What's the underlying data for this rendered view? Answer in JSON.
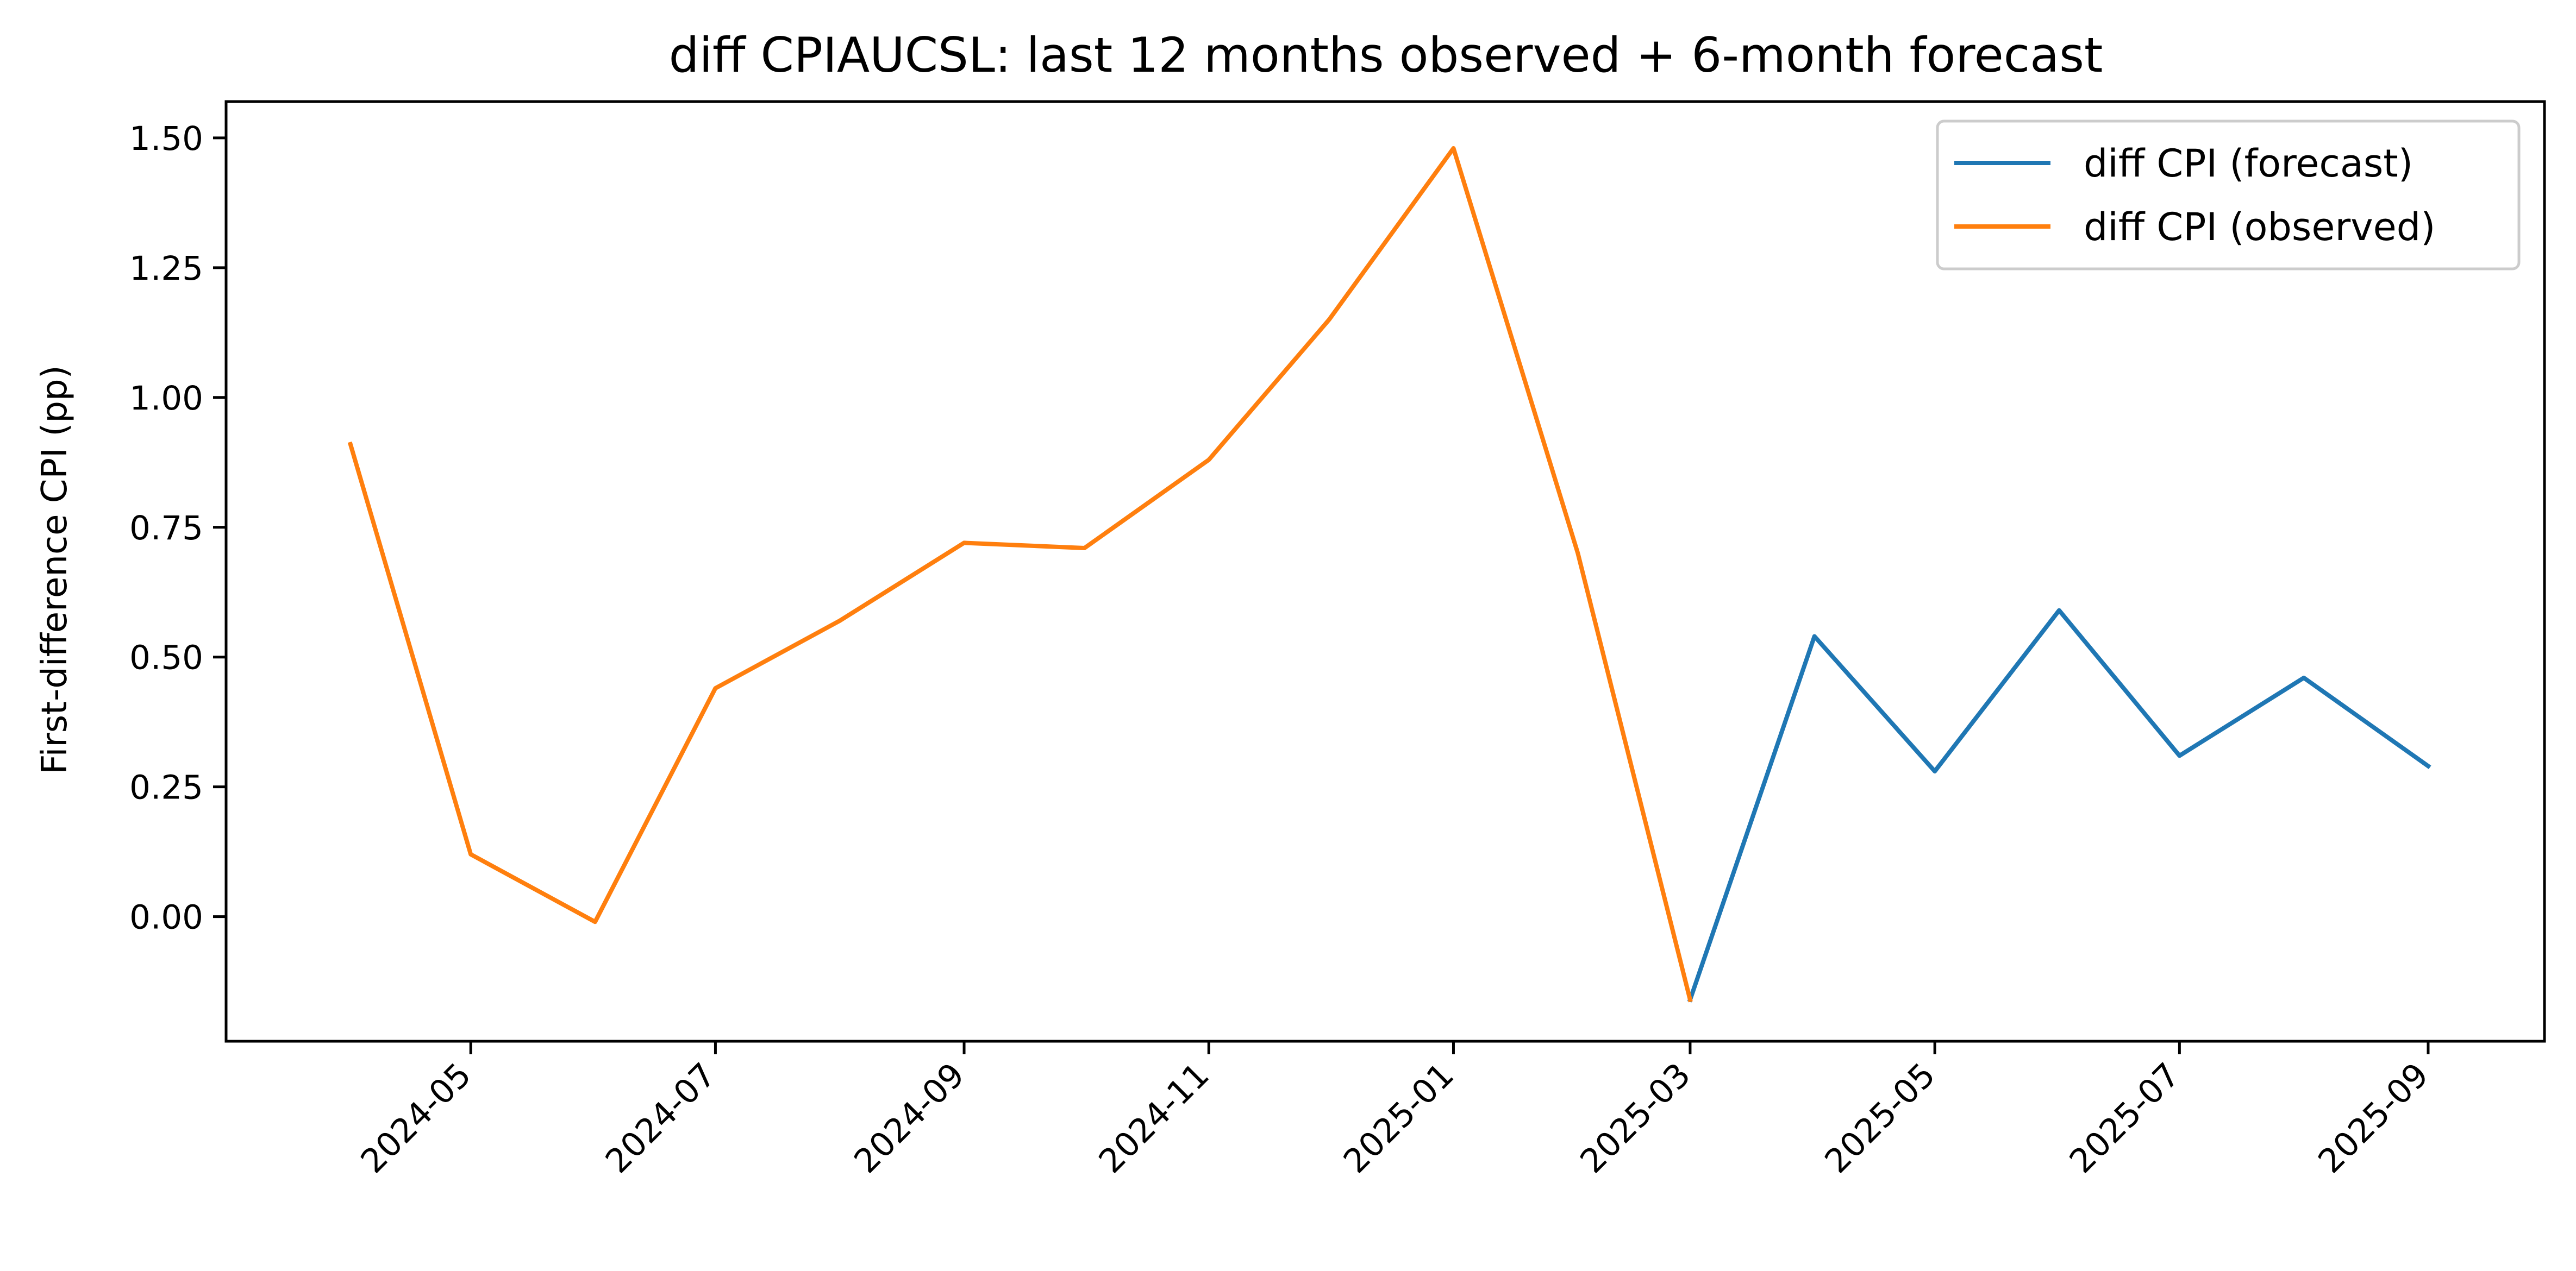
{
  "chart_data": {
    "type": "line",
    "title": "diff CPIAUCSL: last 12 months observed + 6-month forecast",
    "xlabel": "",
    "ylabel": "First-difference CPI (pp)",
    "x_range": [
      "2024-03-01",
      "2025-09-30"
    ],
    "ylim": [
      -0.24,
      1.57
    ],
    "y_ticks": [
      0.0,
      0.25,
      0.5,
      0.75,
      1.0,
      1.25,
      1.5
    ],
    "y_tick_labels": [
      "0.00",
      "0.25",
      "0.50",
      "0.75",
      "1.00",
      "1.25",
      "1.50"
    ],
    "x_ticks": [
      "2024-05",
      "2024-07",
      "2024-09",
      "2024-11",
      "2025-01",
      "2025-03",
      "2025-05",
      "2025-07",
      "2025-09"
    ],
    "grid": false,
    "legend_position": "top-right",
    "series": [
      {
        "name": "diff CPI (forecast)",
        "color": "#1f77b4",
        "x": [
          "2025-03",
          "2025-04",
          "2025-05",
          "2025-06",
          "2025-07",
          "2025-08",
          "2025-09"
        ],
        "values": [
          -0.16,
          0.54,
          0.28,
          0.59,
          0.31,
          0.46,
          0.29
        ]
      },
      {
        "name": "diff CPI (observed)",
        "color": "#ff7f0e",
        "x": [
          "2024-04",
          "2024-05",
          "2024-06",
          "2024-07",
          "2024-08",
          "2024-09",
          "2024-10",
          "2024-11",
          "2024-12",
          "2025-01",
          "2025-02",
          "2025-03"
        ],
        "values": [
          0.91,
          0.12,
          -0.01,
          0.44,
          0.57,
          0.72,
          0.71,
          0.88,
          1.15,
          1.48,
          0.7,
          -0.16
        ]
      }
    ]
  }
}
